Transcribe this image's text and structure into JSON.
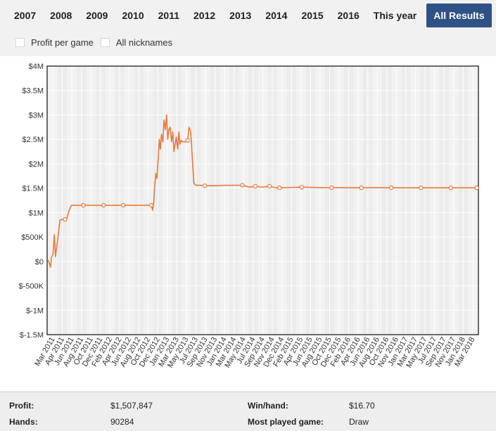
{
  "year_tabs": [
    {
      "label": "2007"
    },
    {
      "label": "2008"
    },
    {
      "label": "2009"
    },
    {
      "label": "2010"
    },
    {
      "label": "2011"
    },
    {
      "label": "2012"
    },
    {
      "label": "2013"
    },
    {
      "label": "2014"
    },
    {
      "label": "2015"
    },
    {
      "label": "2016"
    },
    {
      "label": "This year"
    },
    {
      "label": "All Results",
      "active": true
    }
  ],
  "options": {
    "profit_per_game": {
      "label": "Profit per game",
      "checked": false
    },
    "all_nicknames": {
      "label": "All nicknames",
      "checked": false
    }
  },
  "colors": {
    "accent": "#2f5286",
    "line": "#e8793e",
    "plot_bg": "#f2f2f2",
    "grid": "#ffffff"
  },
  "stats": {
    "profit_label": "Profit:",
    "profit_value": "$1,507,847",
    "hands_label": "Hands:",
    "hands_value": "90284",
    "winhand_label": "Win/hand:",
    "winhand_value": "$16.70",
    "most_played_label": "Most played game:",
    "most_played_value": "Draw"
  },
  "chart_data": {
    "type": "line",
    "title": "",
    "xlabel": "",
    "ylabel": "",
    "ylim": [
      -1500000,
      4000000
    ],
    "y_ticks": [
      4000000,
      3500000,
      3000000,
      2500000,
      2000000,
      1500000,
      1000000,
      500000,
      0,
      -500000,
      -1000000,
      -1500000
    ],
    "y_tick_labels": [
      "$4M",
      "$3.5M",
      "$3M",
      "$2.5M",
      "$2M",
      "$1.5M",
      "$1M",
      "$500K",
      "$0",
      "$-500K",
      "$-1M",
      "$-1.5M"
    ],
    "x_tick_labels": [
      "Mar 2011",
      "Apr 2011",
      "Jun 2011",
      "Aug 2011",
      "Oct 2011",
      "Dec 2011",
      "Feb 2012",
      "Apr 2012",
      "Jun 2012",
      "Aug 2012",
      "Oct 2012",
      "Dec 2012",
      "Jan 2013",
      "Mar 2013",
      "May 2013",
      "Jul 2013",
      "Sep 2013",
      "Nov 2013",
      "Jan 2014",
      "Mar 2014",
      "May 2014",
      "Jul 2014",
      "Sep 2014",
      "Nov 2014",
      "Dec 2014",
      "Feb 2015",
      "Apr 2015",
      "Jun 2015",
      "Aug 2015",
      "Oct 2015",
      "Dec 2015",
      "Feb 2016",
      "Apr 2016",
      "Jun 2016",
      "Aug 2016",
      "Oct 2016",
      "Nov 2016",
      "Jan 2017",
      "Mar 2017",
      "May 2017",
      "Jul 2017",
      "Sep 2017",
      "Nov 2017",
      "Jan 2018",
      "Mar 2018"
    ],
    "x_range": [
      "2011-02-20",
      "2018-05-20"
    ],
    "grid": true,
    "series": [
      {
        "points": [
          [
            "2011-02-24",
            30000
          ],
          [
            "2011-03-05",
            -30000
          ],
          [
            "2011-03-12",
            -120000
          ],
          [
            "2011-03-20",
            100000
          ],
          [
            "2011-03-28",
            140000
          ],
          [
            "2011-04-05",
            550000
          ],
          [
            "2011-04-12",
            100000
          ],
          [
            "2011-04-20",
            300000
          ],
          [
            "2011-05-01",
            600000
          ],
          [
            "2011-05-10",
            850000
          ],
          [
            "2011-06-01",
            860000
          ],
          [
            "2011-06-20",
            870000
          ],
          [
            "2011-07-05",
            1050000
          ],
          [
            "2011-07-20",
            1150000
          ],
          [
            "2011-09-01",
            1150000
          ],
          [
            "2011-10-01",
            1150000
          ],
          [
            "2012-01-01",
            1150000
          ],
          [
            "2012-06-01",
            1150000
          ],
          [
            "2012-11-01",
            1150000
          ],
          [
            "2012-11-20",
            1150000
          ],
          [
            "2012-11-28",
            1050000
          ],
          [
            "2012-12-05",
            1200000
          ],
          [
            "2012-12-10",
            1500000
          ],
          [
            "2012-12-18",
            1800000
          ],
          [
            "2012-12-25",
            1700000
          ],
          [
            "2013-01-01",
            2100000
          ],
          [
            "2013-01-08",
            2500000
          ],
          [
            "2013-01-15",
            2300000
          ],
          [
            "2013-01-22",
            2600000
          ],
          [
            "2013-01-30",
            2450000
          ],
          [
            "2013-02-06",
            2900000
          ],
          [
            "2013-02-14",
            2700000
          ],
          [
            "2013-02-22",
            3000000
          ],
          [
            "2013-03-01",
            2500000
          ],
          [
            "2013-03-08",
            2700000
          ],
          [
            "2013-03-16",
            2750000
          ],
          [
            "2013-03-24",
            2450000
          ],
          [
            "2013-04-01",
            2650000
          ],
          [
            "2013-04-08",
            2250000
          ],
          [
            "2013-04-15",
            2400000
          ],
          [
            "2013-04-22",
            2550000
          ],
          [
            "2013-05-01",
            2300000
          ],
          [
            "2013-05-08",
            2650000
          ],
          [
            "2013-05-15",
            2400000
          ],
          [
            "2013-05-22",
            2480000
          ],
          [
            "2013-06-01",
            2450000
          ],
          [
            "2013-06-20",
            2450000
          ],
          [
            "2013-07-01",
            2480000
          ],
          [
            "2013-07-10",
            2750000
          ],
          [
            "2013-07-20",
            2650000
          ],
          [
            "2013-07-28",
            2200000
          ],
          [
            "2013-08-08",
            1600000
          ],
          [
            "2013-08-20",
            1560000
          ],
          [
            "2013-09-10",
            1560000
          ],
          [
            "2013-10-15",
            1550000
          ],
          [
            "2013-12-01",
            1550000
          ],
          [
            "2014-03-01",
            1560000
          ],
          [
            "2014-06-01",
            1560000
          ],
          [
            "2014-07-15",
            1520000
          ],
          [
            "2014-08-20",
            1540000
          ],
          [
            "2014-10-01",
            1520000
          ],
          [
            "2014-11-15",
            1540000
          ],
          [
            "2014-12-20",
            1510000
          ],
          [
            "2015-02-01",
            1510000
          ],
          [
            "2015-06-01",
            1520000
          ],
          [
            "2015-10-01",
            1510000
          ],
          [
            "2016-03-01",
            1510000
          ],
          [
            "2016-09-01",
            1510000
          ],
          [
            "2017-03-01",
            1508000
          ],
          [
            "2017-09-01",
            1508000
          ],
          [
            "2018-02-01",
            1508000
          ],
          [
            "2018-05-10",
            1507847
          ]
        ],
        "markers": [
          [
            "2011-06-10",
            860000
          ],
          [
            "2011-10-01",
            1150000
          ],
          [
            "2012-02-01",
            1150000
          ],
          [
            "2012-06-01",
            1150000
          ],
          [
            "2012-11-20",
            1150000
          ],
          [
            "2013-07-01",
            2480000
          ],
          [
            "2013-10-15",
            1550000
          ],
          [
            "2014-06-01",
            1560000
          ],
          [
            "2014-08-20",
            1540000
          ],
          [
            "2014-11-15",
            1540000
          ],
          [
            "2015-01-15",
            1510000
          ],
          [
            "2015-06-01",
            1520000
          ],
          [
            "2015-12-01",
            1510000
          ],
          [
            "2016-06-01",
            1510000
          ],
          [
            "2016-12-01",
            1510000
          ],
          [
            "2017-06-01",
            1508000
          ],
          [
            "2017-12-01",
            1508000
          ],
          [
            "2018-05-10",
            1507847
          ]
        ]
      }
    ]
  }
}
